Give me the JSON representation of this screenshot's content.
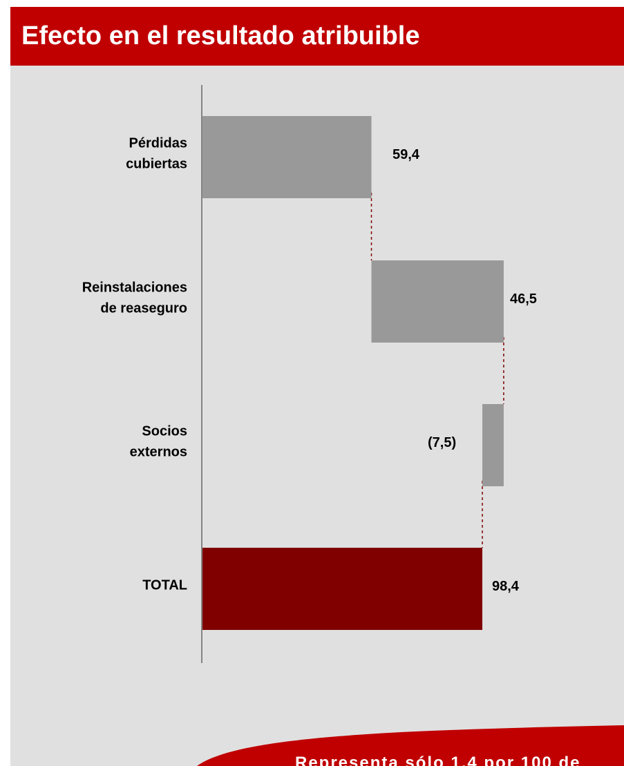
{
  "title": "Efecto en el resultado atribuible",
  "colors": {
    "title_bar": "#c00000",
    "background": "#e0e0e0",
    "bar_gray": "#999999",
    "bar_total": "#800000",
    "connector": "#800000",
    "banner": "#c00000"
  },
  "chart_data": {
    "type": "bar",
    "subtype": "waterfall-horizontal",
    "categories": [
      [
        "Pérdidas",
        "cubiertas"
      ],
      [
        "Reinstalaciones",
        "de reaseguro"
      ],
      [
        "Socios",
        "externos"
      ],
      [
        "TOTAL"
      ]
    ],
    "values": [
      59.4,
      46.5,
      -7.5,
      98.4
    ],
    "value_labels": [
      "59,4",
      "46,5",
      "(7,5)",
      "98,4"
    ],
    "total_index": 3,
    "xlim": [
      0,
      98.4
    ],
    "grid": false,
    "legend": "none"
  },
  "footer_banner": {
    "text": "Representa sólo 1,4 por 100 de"
  }
}
